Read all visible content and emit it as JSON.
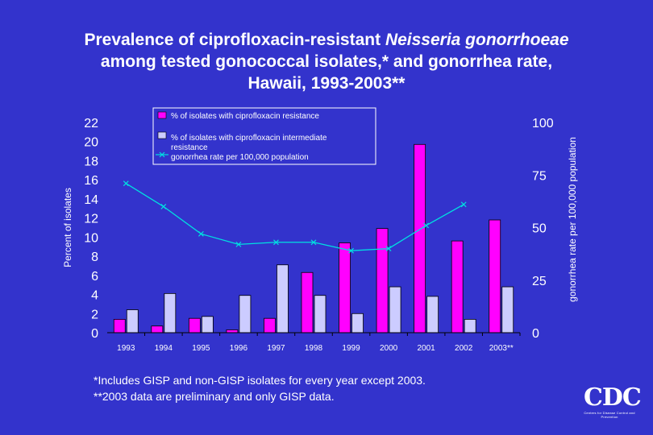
{
  "title": {
    "line1_prefix": "Prevalence of ciprofloxacin-resistant ",
    "line1_species": "Neisseria gonorrhoeae",
    "line2": "among tested gonococcal isolates,* and gonorrhea rate,",
    "line3": "Hawaii, 1993-2003**"
  },
  "footnotes": [
    "*Includes GISP and non-GISP isolates for every year except 2003.",
    "**2003 data are preliminary and only GISP data."
  ],
  "logo": {
    "letters": "CDC",
    "tagline": "Centers for Disease Control and Prevention"
  },
  "colors": {
    "background": "#3333cc",
    "resistance_bar": "#ff00ff",
    "intermediate_bar": "#ccccff",
    "rate_line": "#00e0e0",
    "text": "#ffffff"
  },
  "chart_data": {
    "type": "bar",
    "categories": [
      "1993",
      "1994",
      "1995",
      "1996",
      "1997",
      "1998",
      "1999",
      "2000",
      "2001",
      "2002",
      "2003**"
    ],
    "series": [
      {
        "name": "% of isolates with ciprofloxacin resistance",
        "axis": "left",
        "type": "bar",
        "values": [
          1.4,
          0.7,
          1.5,
          0.3,
          1.5,
          6.3,
          9.4,
          10.9,
          19.7,
          9.6,
          11.8
        ]
      },
      {
        "name": "% of isolates with ciprofloxacin intermediate resistance",
        "axis": "left",
        "type": "bar",
        "values": [
          2.4,
          4.1,
          1.7,
          3.9,
          7.1,
          3.9,
          2.0,
          4.8,
          3.8,
          1.4,
          4.8
        ]
      },
      {
        "name": "gonorrhea rate per 100,000 population",
        "axis": "right",
        "type": "line",
        "values": [
          71,
          60,
          47,
          42,
          43,
          43,
          39,
          40,
          51,
          61,
          null
        ]
      }
    ],
    "ylabel_left": "Percent of isolates",
    "ylabel_right": "gonorrhea rate per 100,000 population",
    "ylim_left": [
      0,
      22
    ],
    "yticks_left": [
      "0",
      "2",
      "4",
      "6",
      "8",
      "10",
      "12",
      "14",
      "16",
      "18",
      "20",
      "22"
    ],
    "ylim_right": [
      0,
      100
    ],
    "yticks_right": [
      "0",
      "25",
      "50",
      "75",
      "100"
    ],
    "legend_position": "top-center",
    "legend_items": [
      "% of isolates with ciprofloxacin resistance",
      "% of isolates with ciprofloxacin intermediate resistance",
      "gonorrhea rate per 100,000 population"
    ]
  }
}
